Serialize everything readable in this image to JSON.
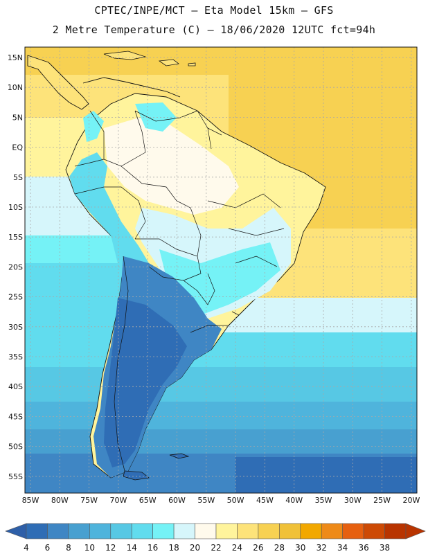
{
  "title": {
    "line1": "CPTEC/INPE/MCT  –   Eta Model 15km  –  GFS",
    "line2": "2 Metre Temperature (C)  –  18/06/2020 12UTC fct=94h"
  },
  "axes": {
    "lat_labels": [
      "15N",
      "10N",
      "5N",
      "EQ",
      "5S",
      "10S",
      "15S",
      "20S",
      "25S",
      "30S",
      "35S",
      "40S",
      "45S",
      "50S",
      "55S"
    ],
    "lon_labels": [
      "85W",
      "80W",
      "75W",
      "70W",
      "65W",
      "60W",
      "55W",
      "50W",
      "45W",
      "40W",
      "35W",
      "30W",
      "25W",
      "20W"
    ]
  },
  "colorbar": {
    "levels": [
      "4",
      "6",
      "8",
      "10",
      "12",
      "14",
      "16",
      "18",
      "20",
      "22",
      "24",
      "26",
      "28",
      "30",
      "32",
      "34",
      "36",
      "38"
    ],
    "colors": [
      "#2f6db5",
      "#3f86c4",
      "#48a0d0",
      "#4fb4dc",
      "#57c8e4",
      "#61dcee",
      "#75f2f6",
      "#d6f6fb",
      "#fffaec",
      "#fff49c",
      "#fde37a",
      "#f7d152",
      "#f0c138",
      "#f2a800",
      "#ee8a18",
      "#e66010",
      "#cd4a05",
      "#b83400"
    ],
    "low_arrow_color": "#2e5fa8",
    "high_arrow_color": "#b83400"
  }
}
